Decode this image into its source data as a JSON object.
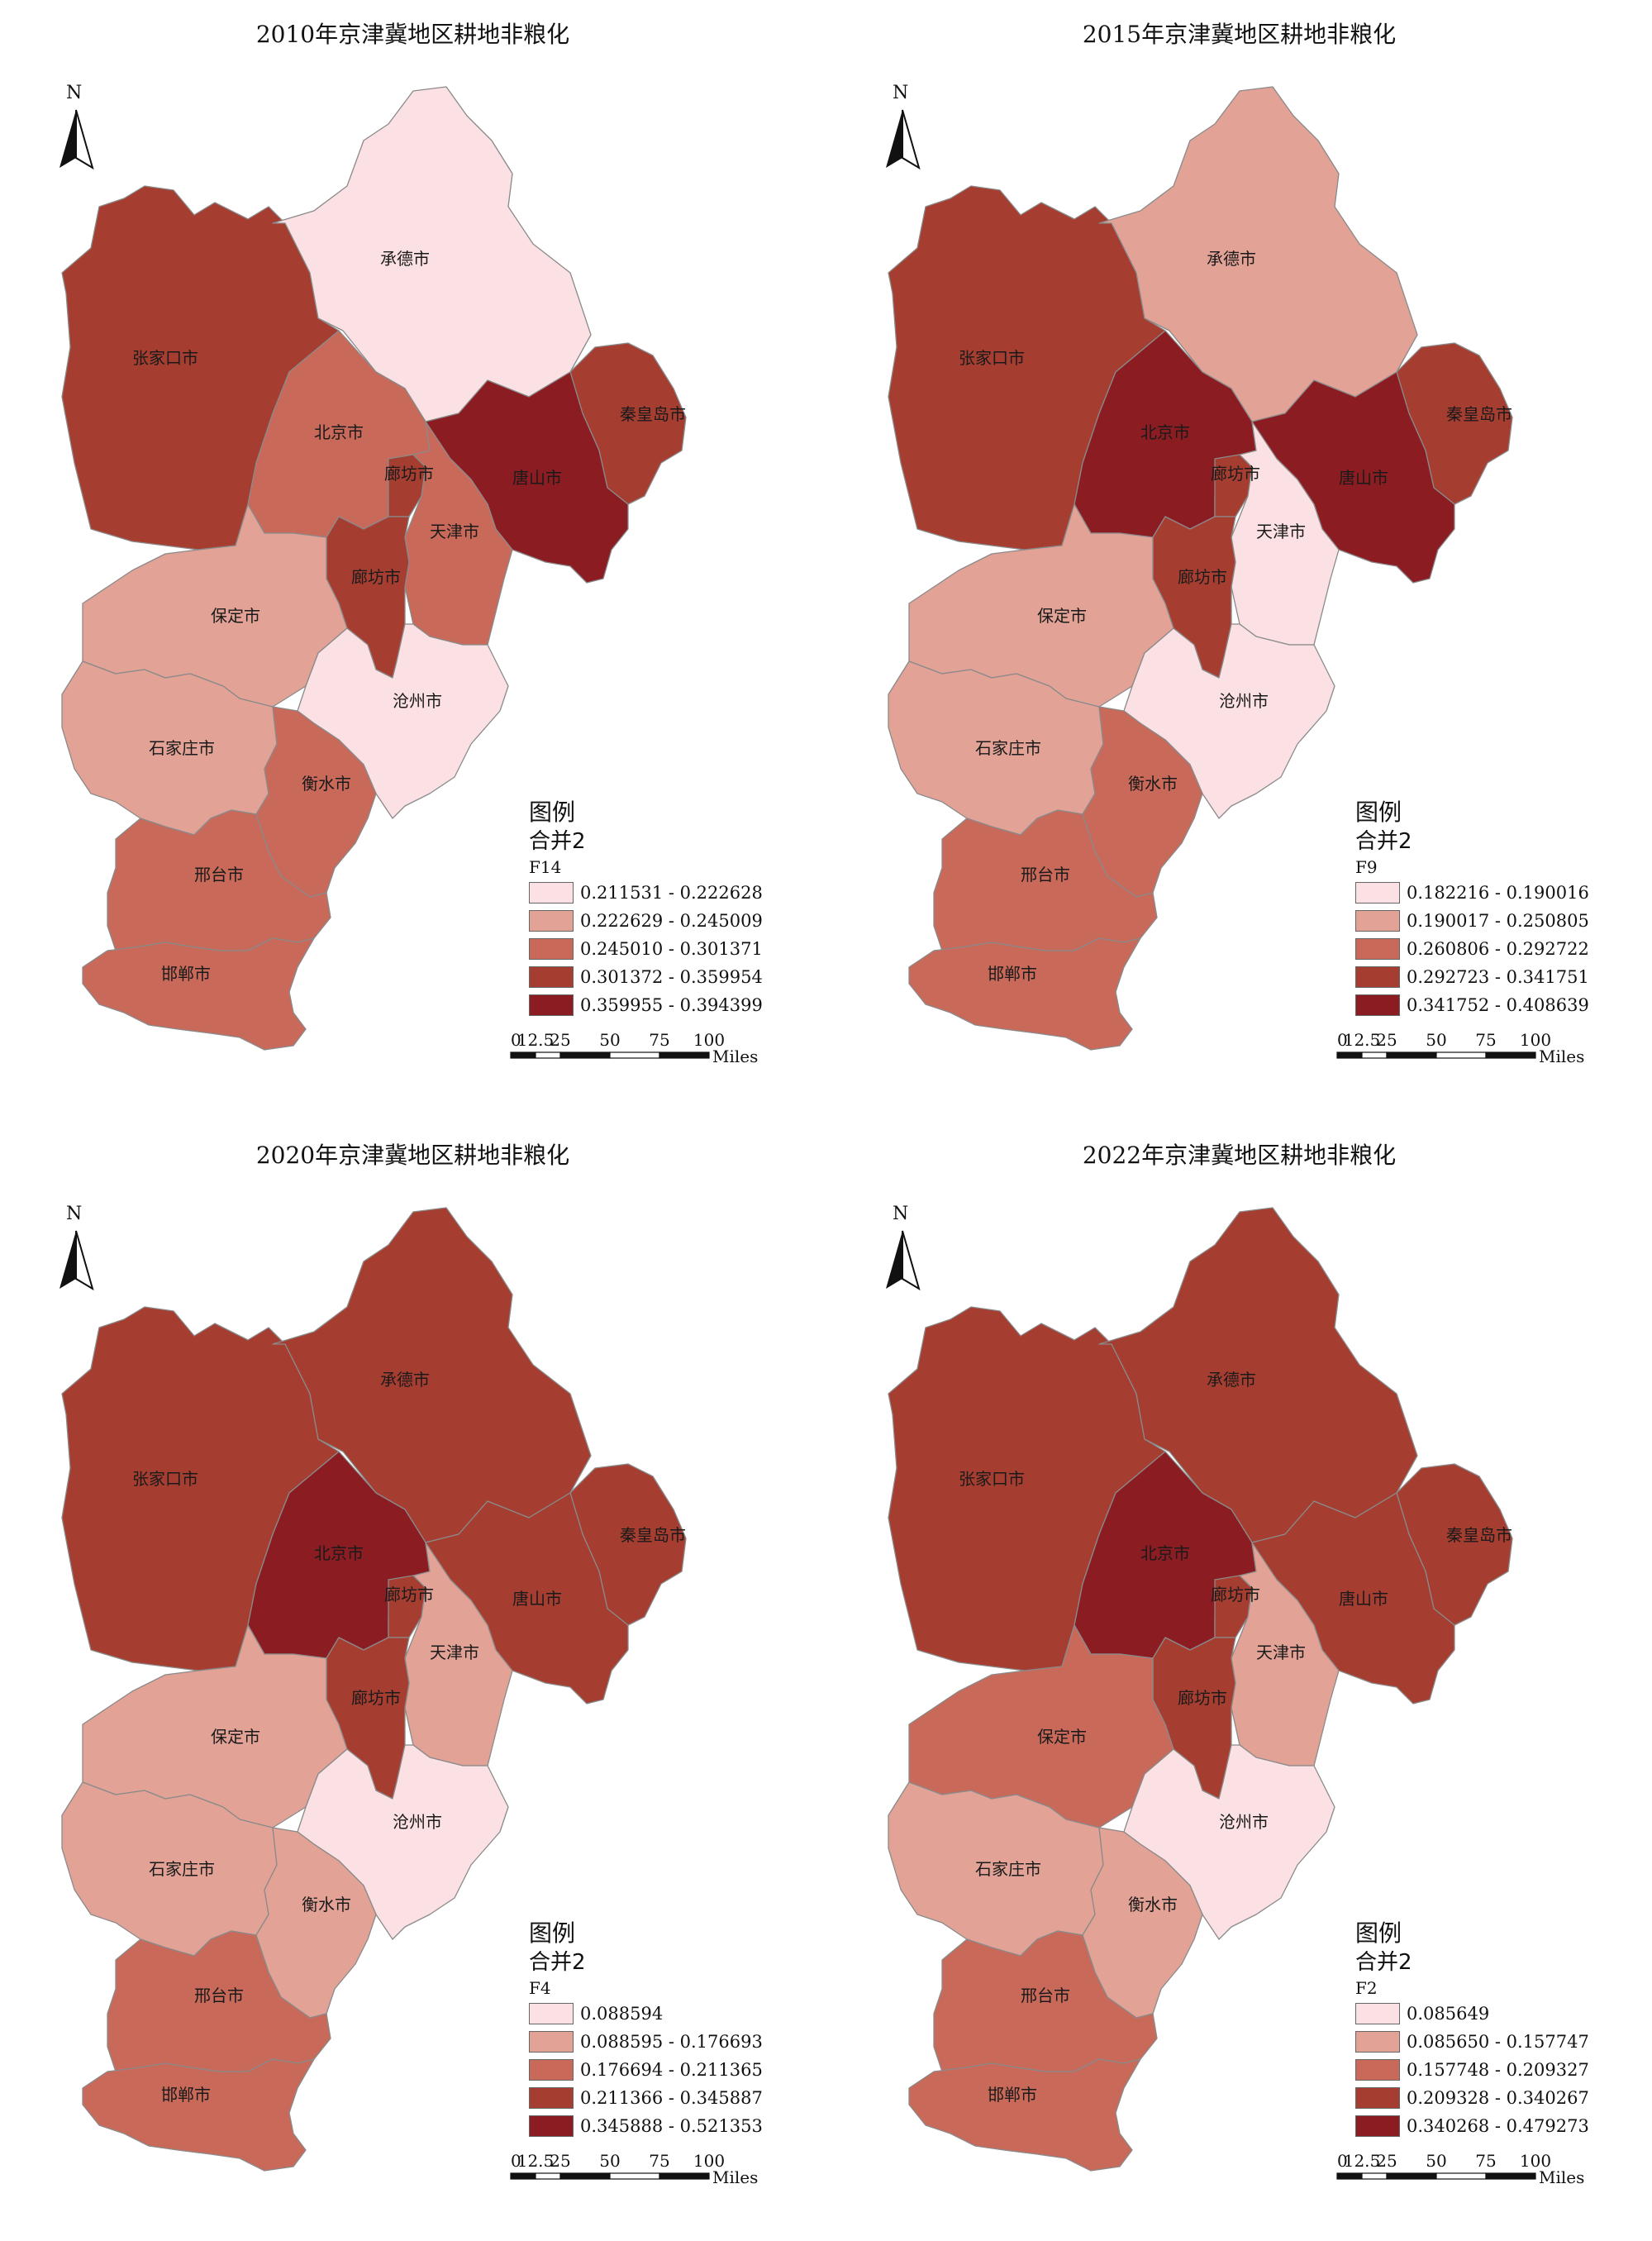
{
  "units": "Miles",
  "scale_ticks": [
    "0",
    "12.5",
    "25",
    "50",
    "75",
    "100"
  ],
  "north_label": "N",
  "legend_title": "图例",
  "legend_layer": "合并2",
  "colors": {
    "c1": "#fbe1e3",
    "c2": "#e2a296",
    "c3": "#c9695a",
    "c4": "#a53d30",
    "c5": "#8b1c22"
  },
  "cities": {
    "zjk": "张家口市",
    "cd": "承德市",
    "qhd": "秦皇岛市",
    "bj": "北京市",
    "lf_n": "廊坊市",
    "ts": "唐山市",
    "tj": "天津市",
    "lf_s": "廊坊市",
    "bd": "保定市",
    "cz": "沧州市",
    "sjz": "石家庄市",
    "hs": "衡水市",
    "xt": "邢台市",
    "hd": "邯郸市"
  },
  "panels": [
    {
      "title": "2010年京津冀地区耕地非粮化",
      "field": "F14",
      "classes": [
        "0.211531 - 0.222628",
        "0.222629 - 0.245009",
        "0.245010 - 0.301371",
        "0.301372 - 0.359954",
        "0.359955 - 0.394399"
      ],
      "region_class": {
        "zjk": 4,
        "cd": 1,
        "qhd": 4,
        "bj": 3,
        "lf_n": 4,
        "ts": 5,
        "tj": 3,
        "lf_s": 4,
        "bd": 2,
        "cz": 1,
        "sjz": 2,
        "hs": 3,
        "xt": 3,
        "hd": 3
      }
    },
    {
      "title": "2015年京津冀地区耕地非粮化",
      "field": "F9",
      "classes": [
        "0.182216 - 0.190016",
        "0.190017 - 0.250805",
        "0.260806 - 0.292722",
        "0.292723 - 0.341751",
        "0.341752 - 0.408639"
      ],
      "region_class": {
        "zjk": 4,
        "cd": 2,
        "qhd": 4,
        "bj": 5,
        "lf_n": 4,
        "ts": 5,
        "tj": 1,
        "lf_s": 4,
        "bd": 2,
        "cz": 1,
        "sjz": 2,
        "hs": 3,
        "xt": 3,
        "hd": 3
      }
    },
    {
      "title": "2020年京津冀地区耕地非粮化",
      "field": "F4",
      "classes": [
        "0.088594",
        "0.088595 - 0.176693",
        "0.176694 - 0.211365",
        "0.211366 - 0.345887",
        "0.345888 - 0.521353"
      ],
      "region_class": {
        "zjk": 4,
        "cd": 4,
        "qhd": 4,
        "bj": 5,
        "lf_n": 4,
        "ts": 4,
        "tj": 2,
        "lf_s": 4,
        "bd": 2,
        "cz": 1,
        "sjz": 2,
        "hs": 2,
        "xt": 3,
        "hd": 3
      }
    },
    {
      "title": "2022年京津冀地区耕地非粮化",
      "field": "F2",
      "classes": [
        "0.085649",
        "0.085650 - 0.157747",
        "0.157748 - 0.209327",
        "0.209328 - 0.340267",
        "0.340268 - 0.479273"
      ],
      "region_class": {
        "zjk": 4,
        "cd": 4,
        "qhd": 4,
        "bj": 5,
        "lf_n": 4,
        "ts": 4,
        "tj": 2,
        "lf_s": 4,
        "bd": 3,
        "cz": 1,
        "sjz": 2,
        "hs": 2,
        "xt": 3,
        "hd": 3
      }
    }
  ]
}
